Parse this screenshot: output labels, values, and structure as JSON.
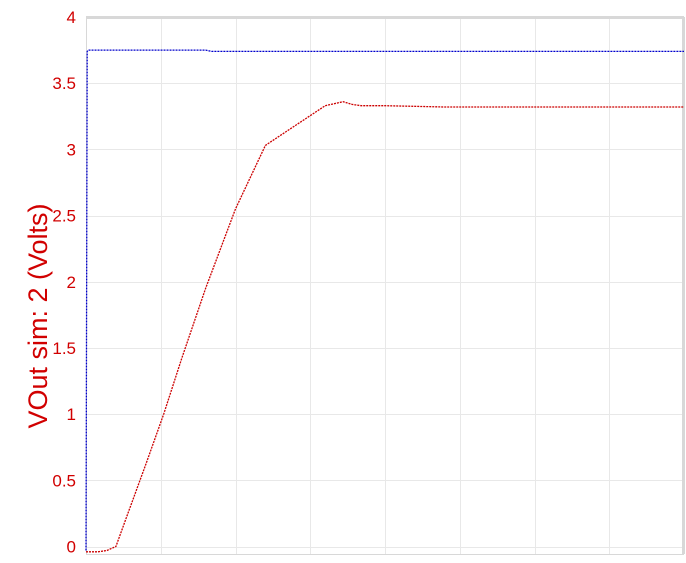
{
  "colors": {
    "axis_text": "#d10000",
    "grid": "#e8e8e8",
    "frame": "#d8d8d8",
    "series_blue": "#0000cc",
    "series_red": "#cc0000"
  },
  "chart_data": {
    "type": "line",
    "title": "",
    "xlabel": "",
    "ylabel": "VOut sim:  2 (Volts)",
    "ylim": [
      -0.05,
      4
    ],
    "y_ticks": [
      0,
      0.5,
      1,
      1.5,
      2,
      2.5,
      3,
      3.5,
      4
    ],
    "y_tick_labels": [
      "0",
      "0.5",
      "1",
      "1.5",
      "2",
      "2.5",
      "3",
      "3.5",
      "4"
    ],
    "xlim": [
      0,
      1
    ],
    "x_grid_positions": [
      0.125,
      0.25,
      0.375,
      0.5,
      0.625,
      0.75,
      0.875
    ],
    "grid": true,
    "legend": "none",
    "series": [
      {
        "color": "#0000cc",
        "style": "dotted",
        "x": [
          0,
          0.002,
          0.004,
          0.2,
          0.21,
          1.0
        ],
        "y": [
          -0.03,
          3.74,
          3.75,
          3.75,
          3.74,
          3.74
        ]
      },
      {
        "color": "#cc0000",
        "style": "dotted",
        "x": [
          0,
          0.02,
          0.035,
          0.05,
          0.07,
          0.1,
          0.13,
          0.16,
          0.2,
          0.25,
          0.3,
          0.34,
          0.37,
          0.4,
          0.43,
          0.445,
          0.46,
          0.5,
          0.6,
          0.7,
          0.8,
          0.9,
          1.0
        ],
        "y": [
          -0.04,
          -0.04,
          -0.03,
          0.0,
          0.25,
          0.62,
          1.0,
          1.42,
          1.95,
          2.55,
          3.03,
          3.15,
          3.24,
          3.33,
          3.36,
          3.34,
          3.33,
          3.33,
          3.32,
          3.32,
          3.32,
          3.32,
          3.32
        ]
      }
    ]
  }
}
